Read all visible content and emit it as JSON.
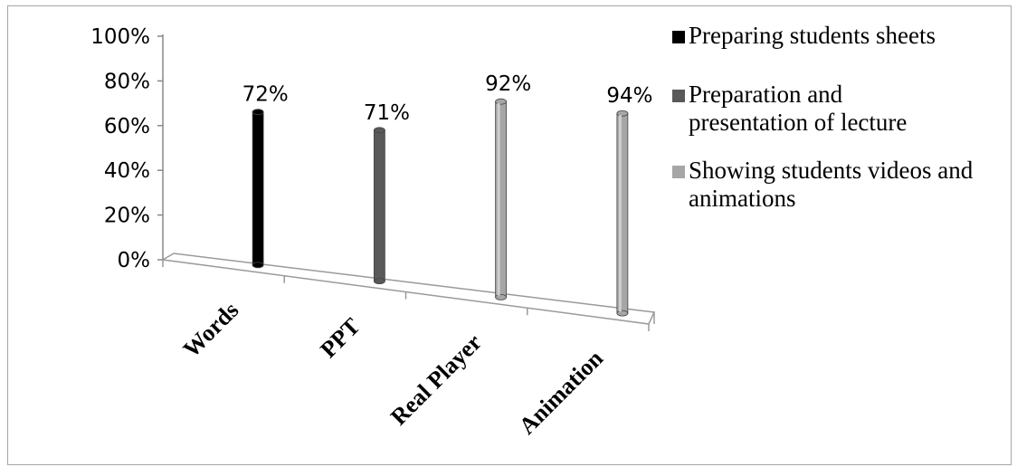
{
  "chart_data": {
    "type": "bar",
    "categories": [
      "Words",
      "PPT",
      "Real Player",
      "Animation"
    ],
    "values": [
      72,
      71,
      92,
      94
    ],
    "data_labels": [
      "72%",
      "71%",
      "92%",
      "94%"
    ],
    "ylim": [
      0,
      100
    ],
    "yticks": [
      "0%",
      "20%",
      "40%",
      "60%",
      "80%",
      "100%"
    ],
    "legend": {
      "placement": "right",
      "entries": [
        {
          "label": "Preparing students sheets",
          "color": "#000000"
        },
        {
          "label": "Preparation and presentation of lecture",
          "color": "#595959"
        },
        {
          "label": "Showing students videos and animations",
          "color": "#a6a6a6"
        }
      ]
    },
    "bar_colors": [
      "#000000",
      "#595959",
      "#a6a6a6",
      "#a6a6a6"
    ],
    "style": "3d-cylinder"
  }
}
